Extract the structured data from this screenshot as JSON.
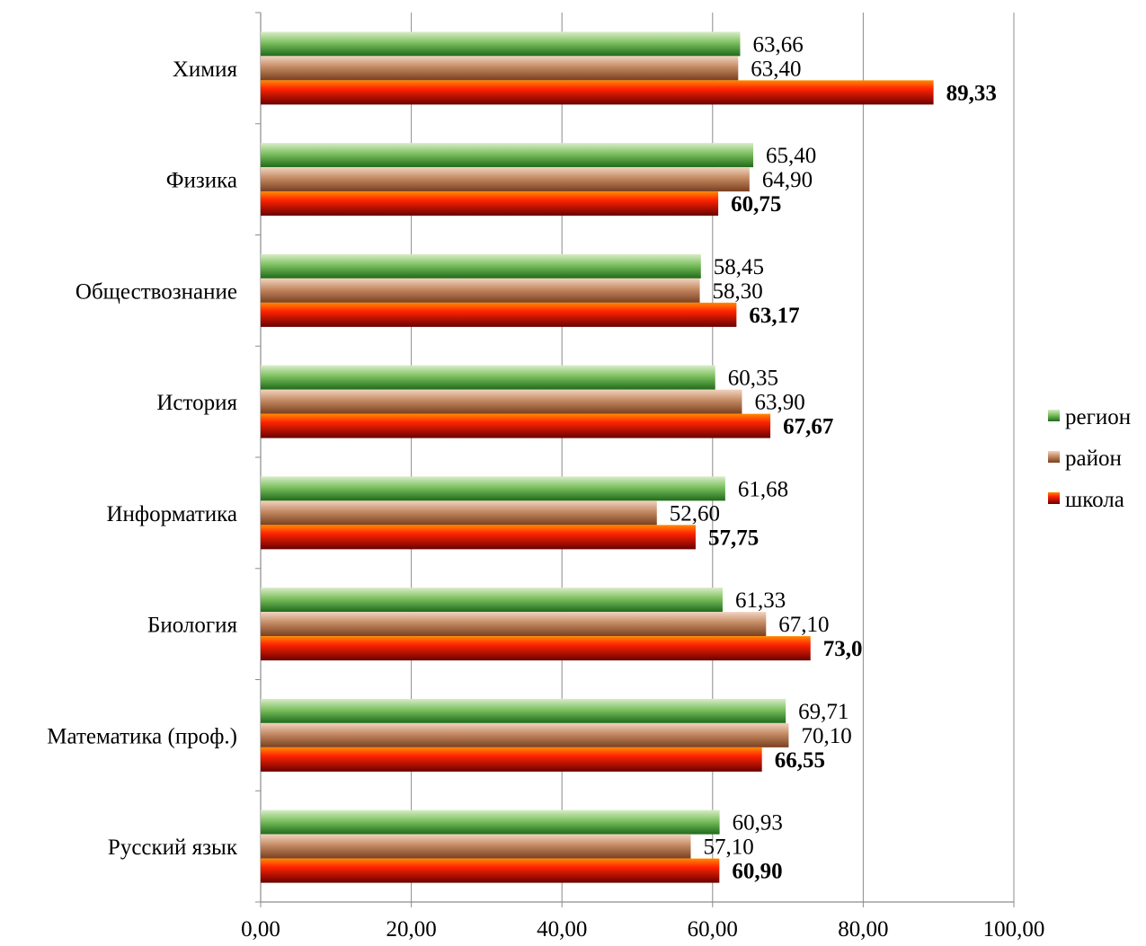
{
  "chart_data": {
    "type": "bar",
    "orientation": "horizontal",
    "title": "",
    "xlabel": "",
    "ylabel": "",
    "xlim": [
      0,
      100
    ],
    "ticks": [
      "0,00",
      "20,00",
      "40,00",
      "60,00",
      "80,00",
      "100,00"
    ],
    "tick_values": [
      0,
      20,
      40,
      60,
      80,
      100
    ],
    "grid": true,
    "legend_position": "right",
    "categories": [
      "Химия",
      "Физика",
      "Обществознание",
      "История",
      "Информатика",
      "Биология",
      "Математика  (проф.)",
      "Русский язык"
    ],
    "series": [
      {
        "name": "регион",
        "color": "#3a8a2e",
        "values": [
          63.66,
          65.4,
          58.45,
          60.35,
          61.68,
          61.33,
          69.71,
          60.93
        ],
        "labels": [
          "63,66",
          "65,40",
          "58,45",
          "60,35",
          "61,68",
          "61,33",
          "69,71",
          "60,93"
        ],
        "bold": false
      },
      {
        "name": "район",
        "color": "#a86a44",
        "values": [
          63.4,
          64.9,
          58.3,
          63.9,
          52.6,
          67.1,
          70.1,
          57.1
        ],
        "labels": [
          "63,40",
          "64,90",
          "58,30",
          "63,90",
          "52,60",
          "67,10",
          "70,10",
          "57,10"
        ],
        "bold": false
      },
      {
        "name": "школа",
        "color": "#e01a00",
        "values": [
          89.33,
          60.75,
          63.17,
          67.67,
          57.75,
          73.0,
          66.55,
          60.9
        ],
        "labels": [
          "89,33",
          "60,75",
          "63,17",
          "67,67",
          "57,75",
          "73,0",
          "66,55",
          "60,90"
        ],
        "bold": true
      }
    ]
  }
}
